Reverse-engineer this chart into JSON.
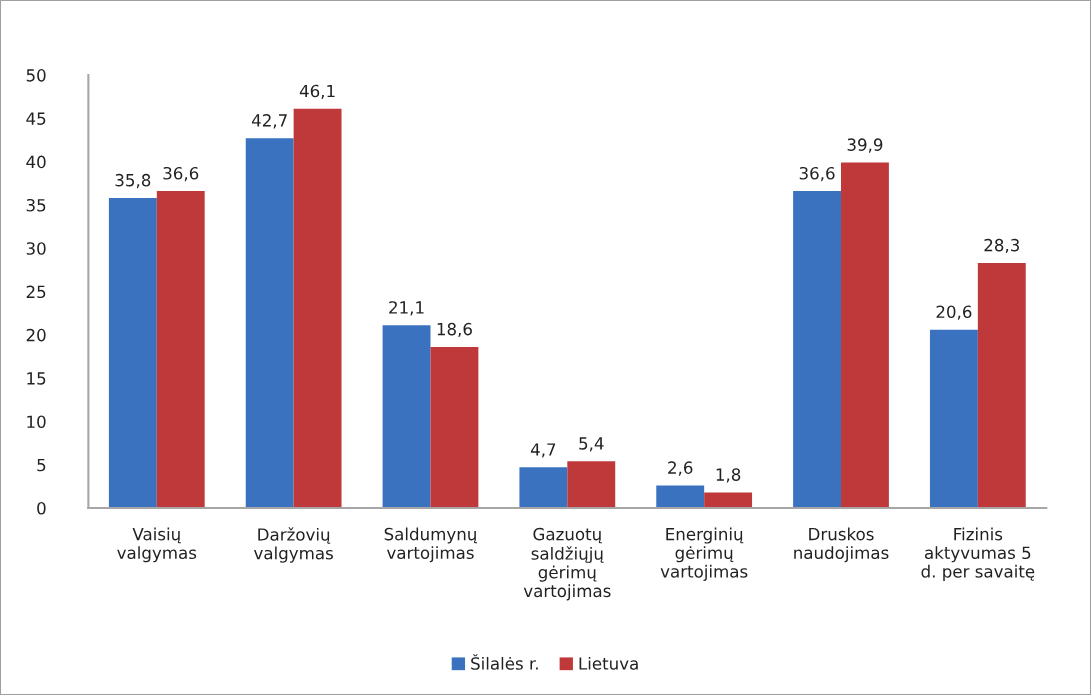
{
  "chart_data": {
    "type": "bar",
    "categories": [
      "Vaisių\nvalgymas",
      "Daržovių\nvalgymas",
      "Saldumynų\nvartojimas",
      "Gazuotų\nsaldžiųjų\ngėrimų\nvartojimas",
      "Energinių\ngėrimų\nvartojimas",
      "Druskos\nnaudojimas",
      "Fizinis\naktyvumas 5\nd. per savaitę"
    ],
    "series": [
      {
        "name": "Šilalės r.",
        "color": "#3a72c0",
        "values": [
          35.8,
          42.7,
          21.1,
          4.7,
          2.6,
          36.6,
          20.6
        ],
        "value_labels": [
          "35,8",
          "42,7",
          "21,1",
          "4,7",
          "2,6",
          "36,6",
          "20,6"
        ]
      },
      {
        "name": "Lietuva",
        "color": "#c0393a",
        "values": [
          36.6,
          46.1,
          18.6,
          5.4,
          1.8,
          39.9,
          28.3
        ],
        "value_labels": [
          "36,6",
          "46,1",
          "18,6",
          "5,4",
          "1,8",
          "39,9",
          "28,3"
        ]
      }
    ],
    "ylim": [
      0,
      50
    ],
    "yticks": [
      0,
      5,
      10,
      15,
      20,
      25,
      30,
      35,
      40,
      45,
      50
    ],
    "grid": false,
    "legend": "bottom"
  }
}
